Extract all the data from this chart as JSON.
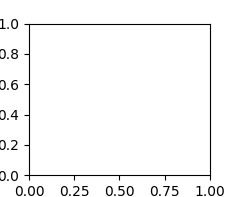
{
  "bg_color": "#ffffff",
  "line_color": "#2a2a2a",
  "line_width": 1.3,
  "font_size": 8
}
